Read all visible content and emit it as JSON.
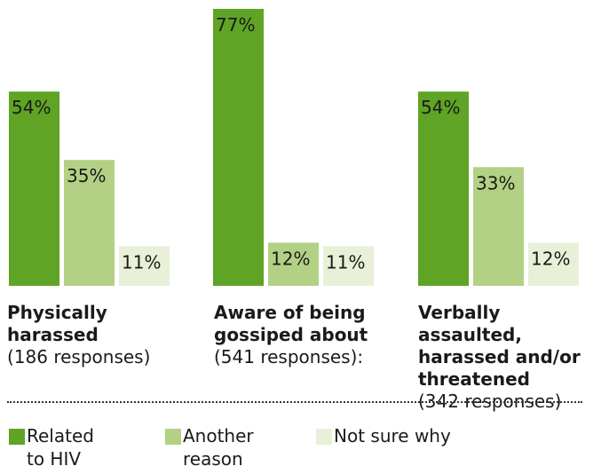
{
  "chart_data": {
    "type": "bar",
    "categories": [
      {
        "title": "Physically harassed",
        "title_lines": [
          "Physically",
          "harassed"
        ],
        "responses": "(186 responses)"
      },
      {
        "title": "Aware of being gossiped about",
        "title_lines": [
          "Aware of being",
          "gossiped about"
        ],
        "responses": "(541 responses):"
      },
      {
        "title": "Verbally assaulted, harassed and/or threatened",
        "title_lines": [
          "Verbally assaulted,",
          "harassed and/or",
          "threatened"
        ],
        "responses": "(342 responses)"
      }
    ],
    "series": [
      {
        "name": "Related to HIV",
        "color": "#5fa424",
        "values": [
          54,
          77,
          54
        ],
        "labels": [
          "54%",
          "77%",
          "54%"
        ]
      },
      {
        "name": "Another reason",
        "color": "#b3d184",
        "values": [
          35,
          12,
          33
        ],
        "labels": [
          "35%",
          "12%",
          "33%"
        ]
      },
      {
        "name": "Not sure why",
        "color": "#e8f0d8",
        "values": [
          11,
          11,
          12
        ],
        "labels": [
          "11%",
          "11%",
          "12%"
        ]
      }
    ],
    "ylim": [
      0,
      77
    ],
    "legend": {
      "position": "bottom",
      "items": [
        "Related\nto HIV",
        "Another\nreason",
        "Not sure why"
      ]
    }
  }
}
